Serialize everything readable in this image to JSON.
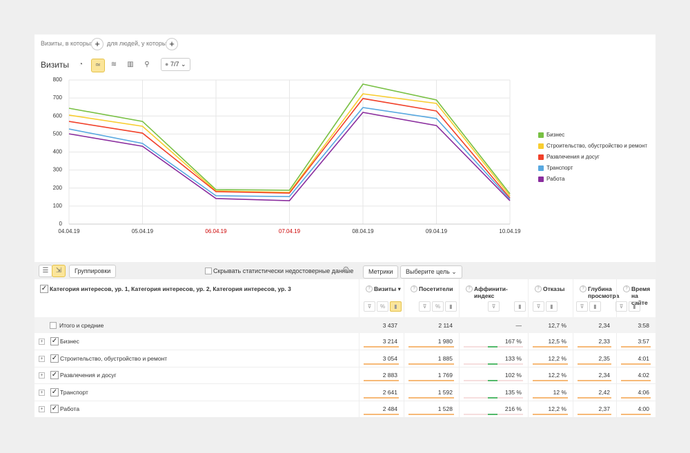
{
  "filters": {
    "visits_label": "Визиты, в которых",
    "people_label": "для людей, у которых"
  },
  "chart_toolbar": {
    "title": "Визиты",
    "segments": "7/7"
  },
  "chart_data": {
    "type": "line",
    "x": [
      "04.04.19",
      "05.04.19",
      "06.04.19",
      "07.04.19",
      "08.04.19",
      "09.04.19",
      "10.04.19"
    ],
    "x_label_colors": [
      "#333333",
      "#333333",
      "#cc0000",
      "#cc0000",
      "#333333",
      "#333333",
      "#333333"
    ],
    "ylim": [
      0,
      800
    ],
    "yticks": [
      0,
      100,
      200,
      300,
      400,
      500,
      600,
      700,
      800
    ],
    "grid": true,
    "legend": "right",
    "series": [
      {
        "name": "Бизнес",
        "color": "#78c043",
        "values": [
          643,
          570,
          191,
          188,
          777,
          689,
          168
        ]
      },
      {
        "name": "Строительство, обустройство и ремонт",
        "color": "#f8cd30",
        "values": [
          605,
          543,
          184,
          176,
          723,
          670,
          157
        ]
      },
      {
        "name": "Развлечения и досуг",
        "color": "#f1412a",
        "values": [
          570,
          505,
          180,
          172,
          697,
          628,
          145
        ]
      },
      {
        "name": "Транспорт",
        "color": "#58a8e0",
        "values": [
          528,
          448,
          157,
          153,
          647,
          586,
          138
        ]
      },
      {
        "name": "Работа",
        "color": "#8a2d9e",
        "values": [
          501,
          432,
          142,
          130,
          620,
          547,
          130
        ]
      }
    ]
  },
  "table_toolbar": {
    "groupings": "Группировки",
    "hide_unreliable": "Скрывать статистически недостоверные данные",
    "metrics": "Метрики",
    "goal": "Выберите цель"
  },
  "table": {
    "dimension_header": "Категория интересов, ур. 1, Категория интересов, ур. 2, Категория интересов, ур. 3",
    "columns": [
      "Визиты",
      "Посетители",
      "Аффинити-индекс",
      "Отказы",
      "Глубина просмотра",
      "Время на сайте"
    ],
    "totals": {
      "label": "Итого и средние",
      "cells": [
        "3 437",
        "2 114",
        "—",
        "12,7 %",
        "2,34",
        "3:58"
      ]
    },
    "rows": [
      {
        "label": "Бизнес",
        "cells": [
          "3 214",
          "1 980",
          "167 %",
          "12,5 %",
          "2,33",
          "3:57"
        ]
      },
      {
        "label": "Строительство, обустройство и ремонт",
        "cells": [
          "3 054",
          "1 885",
          "133 %",
          "12,2 %",
          "2,35",
          "4:01"
        ]
      },
      {
        "label": "Развлечения и досуг",
        "cells": [
          "2 883",
          "1 769",
          "102 %",
          "12,2 %",
          "2,34",
          "4:02"
        ]
      },
      {
        "label": "Транспорт",
        "cells": [
          "2 641",
          "1 592",
          "135 %",
          "12 %",
          "2,42",
          "4:06"
        ]
      },
      {
        "label": "Работа",
        "cells": [
          "2 484",
          "1 528",
          "216 %",
          "12,2 %",
          "2,37",
          "4:00"
        ]
      }
    ]
  }
}
